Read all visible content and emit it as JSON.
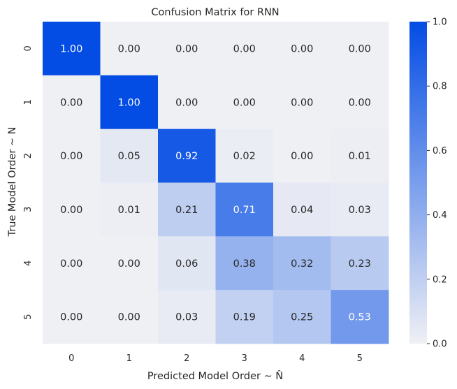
{
  "chart_data": {
    "type": "heatmap",
    "title": "Confusion Matrix for RNN",
    "xlabel": "Predicted Model Order ~ N̂",
    "ylabel": "True Model Order ~ N",
    "x_categories": [
      "0",
      "1",
      "2",
      "3",
      "4",
      "5"
    ],
    "y_categories": [
      "0",
      "1",
      "2",
      "3",
      "4",
      "5"
    ],
    "values": [
      [
        1.0,
        0.0,
        0.0,
        0.0,
        0.0,
        0.0
      ],
      [
        0.0,
        1.0,
        0.0,
        0.0,
        0.0,
        0.0
      ],
      [
        0.0,
        0.05,
        0.92,
        0.02,
        0.0,
        0.01
      ],
      [
        0.0,
        0.01,
        0.21,
        0.71,
        0.04,
        0.03
      ],
      [
        0.0,
        0.0,
        0.06,
        0.38,
        0.32,
        0.23
      ],
      [
        0.0,
        0.0,
        0.03,
        0.19,
        0.25,
        0.53
      ]
    ],
    "cell_labels": [
      [
        "1.00",
        "0.00",
        "0.00",
        "0.00",
        "0.00",
        "0.00"
      ],
      [
        "0.00",
        "1.00",
        "0.00",
        "0.00",
        "0.00",
        "0.00"
      ],
      [
        "0.00",
        "0.05",
        "0.92",
        "0.02",
        "0.00",
        "0.01"
      ],
      [
        "0.00",
        "0.01",
        "0.21",
        "0.71",
        "0.04",
        "0.03"
      ],
      [
        "0.00",
        "0.00",
        "0.06",
        "0.38",
        "0.32",
        "0.23"
      ],
      [
        "0.00",
        "0.00",
        "0.03",
        "0.19",
        "0.25",
        "0.53"
      ]
    ],
    "colorbar": {
      "range": [
        0.0,
        1.0
      ],
      "ticks": [
        "0.0",
        "0.2",
        "0.4",
        "0.6",
        "0.8",
        "1.0"
      ]
    },
    "colors": {
      "low": "#eff0f4",
      "high": "#034ce4",
      "text_dark": "#262626",
      "text_light": "#ffffff"
    }
  }
}
